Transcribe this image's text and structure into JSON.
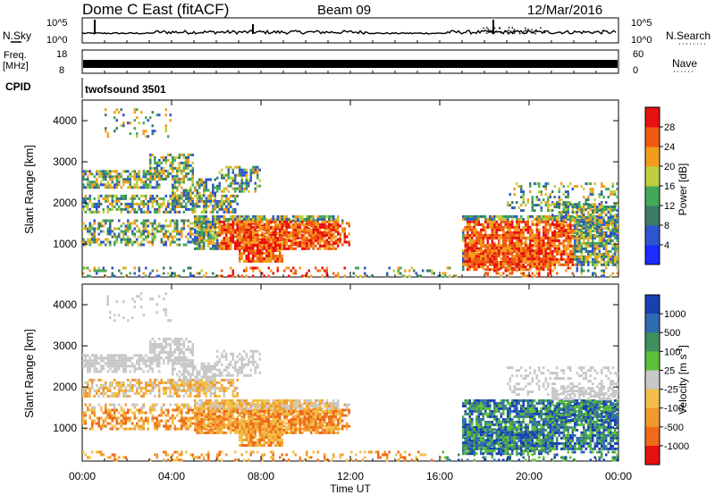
{
  "header": {
    "title": "Dome C East (fitACF)",
    "beam": "Beam 09",
    "date": "12/Mar/2016"
  },
  "top_panels": {
    "nsky_label": "N.Sky",
    "nsky_tick_top": "10^5",
    "nsky_tick_bottom": "10^0",
    "nsearch_label": "N.Search",
    "freq_label": "Freq.",
    "freq_unit": "[MHz]",
    "freq_ticks": [
      "18",
      "8"
    ],
    "nave_ticks": [
      "60",
      "0"
    ],
    "nave_label": "Nave",
    "cpid_label": "CPID",
    "cpid_value": "twofsound 3501"
  },
  "chart_data": [
    {
      "type": "heatmap",
      "name": "power",
      "ylabel": "Slant Range [km]",
      "xlabel": "Time UT",
      "yticks": [
        "1000",
        "2000",
        "3000",
        "4000"
      ],
      "ylim": [
        200,
        4500
      ],
      "xlim": [
        "00:00",
        "24:00"
      ],
      "colorbar": {
        "label": "Power [dB]",
        "ticks": [
          "4",
          "8",
          "12",
          "16",
          "20",
          "24",
          "28"
        ],
        "colors": [
          "#1a2cff",
          "#2d55d0",
          "#3b7b66",
          "#44a85a",
          "#bfcf40",
          "#f39c1c",
          "#f05a10",
          "#e81010"
        ]
      }
    },
    {
      "type": "heatmap",
      "name": "velocity",
      "ylabel": "Slant Range [km]",
      "xlabel": "Time UT",
      "yticks": [
        "1000",
        "2000",
        "3000",
        "4000"
      ],
      "ylim": [
        200,
        4500
      ],
      "xlim": [
        "00:00",
        "24:00"
      ],
      "colorbar": {
        "label": "Velocity [m s",
        "label_sup": "-1",
        "label_end": "]",
        "ticks": [
          "1000",
          "500",
          "100",
          "25",
          "-25",
          "-100",
          "-500",
          "-1000"
        ],
        "colors": [
          "#1a3fb0",
          "#2f6bb0",
          "#3f8f5f",
          "#5cbf3a",
          "#c8c8c8",
          "#f2c04a",
          "#f09a2e",
          "#f06a1a",
          "#e81010"
        ]
      }
    }
  ],
  "x_axis": {
    "ticks": [
      "00:00",
      "04:00",
      "08:00",
      "12:00",
      "16:00",
      "20:00",
      "00:00"
    ],
    "label": "Time UT"
  }
}
